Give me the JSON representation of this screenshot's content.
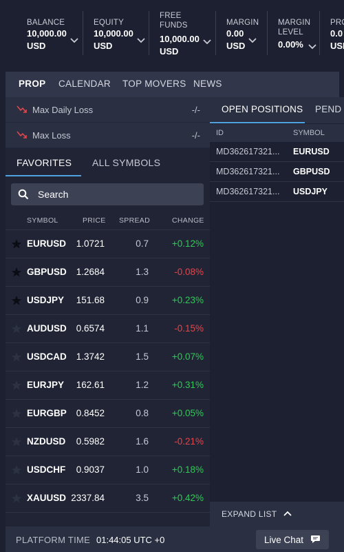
{
  "account": {
    "items": [
      {
        "label": "BALANCE",
        "value": "10,000.00",
        "currency": "USD"
      },
      {
        "label": "EQUITY",
        "value": "10,000.00",
        "currency": "USD"
      },
      {
        "label_line1": "FREE",
        "label_line2": "FUNDS",
        "value": "10,000.00",
        "currency": "USD"
      },
      {
        "label": "MARGIN",
        "value": "0.00",
        "currency": "USD"
      },
      {
        "label_line1": "MARGIN",
        "label_line2": "LEVEL",
        "value": "0.00%"
      },
      {
        "label": "PRO",
        "value": "0.0",
        "currency": "USD"
      }
    ]
  },
  "prop_tabs": [
    "PROP",
    "CALENDAR",
    "TOP MOVERS",
    "NEWS"
  ],
  "loss_rows": [
    {
      "label": "Max Daily Loss",
      "value": "-/-"
    },
    {
      "label": "Max Loss",
      "value": "-/-"
    }
  ],
  "symbol_tabs": [
    "FAVORITES",
    "ALL SYMBOLS"
  ],
  "search": {
    "placeholder": "Search"
  },
  "table": {
    "headers": [
      "SYMBOL",
      "PRICE",
      "SPREAD",
      "CHANGE"
    ],
    "rows": [
      {
        "symbol": "EURUSD",
        "price": "1.0721",
        "spread": "0.7",
        "change": "+0.12%",
        "dir": "pos",
        "fav": true
      },
      {
        "symbol": "GBPUSD",
        "price": "1.2684",
        "spread": "1.3",
        "change": "-0.08%",
        "dir": "neg",
        "fav": true
      },
      {
        "symbol": "USDJPY",
        "price": "151.68",
        "spread": "0.9",
        "change": "+0.23%",
        "dir": "pos",
        "fav": true
      },
      {
        "symbol": "AUDUSD",
        "price": "0.6574",
        "spread": "1.1",
        "change": "-0.15%",
        "dir": "neg",
        "fav": false
      },
      {
        "symbol": "USDCAD",
        "price": "1.3742",
        "spread": "1.5",
        "change": "+0.07%",
        "dir": "pos",
        "fav": false
      },
      {
        "symbol": "EURJPY",
        "price": "162.61",
        "spread": "1.2",
        "change": "+0.31%",
        "dir": "pos",
        "fav": false
      },
      {
        "symbol": "EURGBP",
        "price": "0.8452",
        "spread": "0.8",
        "change": "+0.05%",
        "dir": "pos",
        "fav": false
      },
      {
        "symbol": "NZDUSD",
        "price": "0.5982",
        "spread": "1.6",
        "change": "-0.21%",
        "dir": "neg",
        "fav": false
      },
      {
        "symbol": "USDCHF",
        "price": "0.9037",
        "spread": "1.0",
        "change": "+0.18%",
        "dir": "pos",
        "fav": false
      },
      {
        "symbol": "XAUUSD",
        "price": "2337.84",
        "spread": "3.5",
        "change": "+0.42%",
        "dir": "pos",
        "fav": false
      }
    ]
  },
  "positions": {
    "tabs": [
      "OPEN POSITIONS",
      "PEND"
    ],
    "headers": [
      "ID",
      "SYMBOL"
    ],
    "rows": [
      {
        "id": "MD362617321...",
        "symbol": "EURUSD"
      },
      {
        "id": "MD362617321...",
        "symbol": "GBPUSD"
      },
      {
        "id": "MD362617321...",
        "symbol": "USDJPY"
      }
    ],
    "expand_label": "EXPAND LIST"
  },
  "footer": {
    "platform_time_label": "PLATFORM TIME",
    "platform_time": "01:44:05 UTC +0",
    "chat_label": "Live Chat"
  },
  "colors": {
    "positive": "#34c759",
    "negative": "#e0474c",
    "accent": "#4fa3e0"
  }
}
